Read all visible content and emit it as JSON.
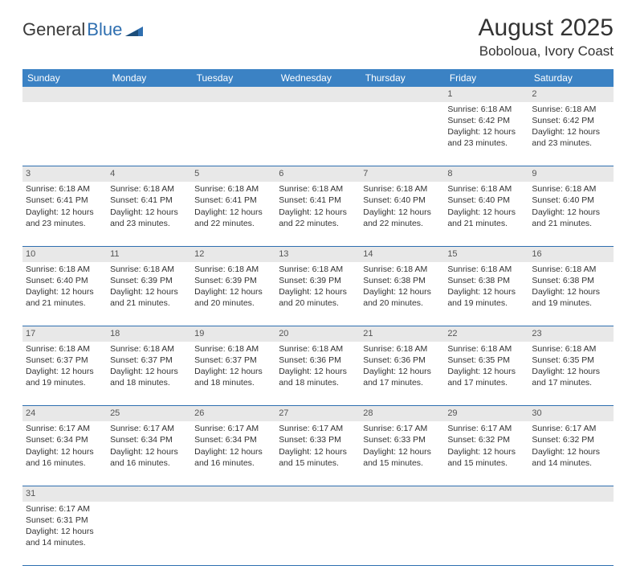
{
  "logo": {
    "text1": "General",
    "text2": "Blue"
  },
  "title": "August 2025",
  "location": "Boboloua, Ivory Coast",
  "colors": {
    "header_bg": "#3b82c4",
    "header_text": "#ffffff",
    "daynum_bg": "#e8e8e8",
    "cell_border": "#2f6fb0",
    "logo_blue": "#2f6fb0",
    "body_text": "#333333",
    "background": "#ffffff"
  },
  "typography": {
    "title_fontsize": 30,
    "location_fontsize": 17,
    "dayheader_fontsize": 12,
    "cell_fontsize": 10.5,
    "daynum_fontsize": 11
  },
  "day_headers": [
    "Sunday",
    "Monday",
    "Tuesday",
    "Wednesday",
    "Thursday",
    "Friday",
    "Saturday"
  ],
  "weeks": [
    {
      "nums": [
        "",
        "",
        "",
        "",
        "",
        "1",
        "2"
      ],
      "cells": [
        null,
        null,
        null,
        null,
        null,
        {
          "sunrise": "Sunrise: 6:18 AM",
          "sunset": "Sunset: 6:42 PM",
          "daylight": "Daylight: 12 hours and 23 minutes."
        },
        {
          "sunrise": "Sunrise: 6:18 AM",
          "sunset": "Sunset: 6:42 PM",
          "daylight": "Daylight: 12 hours and 23 minutes."
        }
      ]
    },
    {
      "nums": [
        "3",
        "4",
        "5",
        "6",
        "7",
        "8",
        "9"
      ],
      "cells": [
        {
          "sunrise": "Sunrise: 6:18 AM",
          "sunset": "Sunset: 6:41 PM",
          "daylight": "Daylight: 12 hours and 23 minutes."
        },
        {
          "sunrise": "Sunrise: 6:18 AM",
          "sunset": "Sunset: 6:41 PM",
          "daylight": "Daylight: 12 hours and 23 minutes."
        },
        {
          "sunrise": "Sunrise: 6:18 AM",
          "sunset": "Sunset: 6:41 PM",
          "daylight": "Daylight: 12 hours and 22 minutes."
        },
        {
          "sunrise": "Sunrise: 6:18 AM",
          "sunset": "Sunset: 6:41 PM",
          "daylight": "Daylight: 12 hours and 22 minutes."
        },
        {
          "sunrise": "Sunrise: 6:18 AM",
          "sunset": "Sunset: 6:40 PM",
          "daylight": "Daylight: 12 hours and 22 minutes."
        },
        {
          "sunrise": "Sunrise: 6:18 AM",
          "sunset": "Sunset: 6:40 PM",
          "daylight": "Daylight: 12 hours and 21 minutes."
        },
        {
          "sunrise": "Sunrise: 6:18 AM",
          "sunset": "Sunset: 6:40 PM",
          "daylight": "Daylight: 12 hours and 21 minutes."
        }
      ]
    },
    {
      "nums": [
        "10",
        "11",
        "12",
        "13",
        "14",
        "15",
        "16"
      ],
      "cells": [
        {
          "sunrise": "Sunrise: 6:18 AM",
          "sunset": "Sunset: 6:40 PM",
          "daylight": "Daylight: 12 hours and 21 minutes."
        },
        {
          "sunrise": "Sunrise: 6:18 AM",
          "sunset": "Sunset: 6:39 PM",
          "daylight": "Daylight: 12 hours and 21 minutes."
        },
        {
          "sunrise": "Sunrise: 6:18 AM",
          "sunset": "Sunset: 6:39 PM",
          "daylight": "Daylight: 12 hours and 20 minutes."
        },
        {
          "sunrise": "Sunrise: 6:18 AM",
          "sunset": "Sunset: 6:39 PM",
          "daylight": "Daylight: 12 hours and 20 minutes."
        },
        {
          "sunrise": "Sunrise: 6:18 AM",
          "sunset": "Sunset: 6:38 PM",
          "daylight": "Daylight: 12 hours and 20 minutes."
        },
        {
          "sunrise": "Sunrise: 6:18 AM",
          "sunset": "Sunset: 6:38 PM",
          "daylight": "Daylight: 12 hours and 19 minutes."
        },
        {
          "sunrise": "Sunrise: 6:18 AM",
          "sunset": "Sunset: 6:38 PM",
          "daylight": "Daylight: 12 hours and 19 minutes."
        }
      ]
    },
    {
      "nums": [
        "17",
        "18",
        "19",
        "20",
        "21",
        "22",
        "23"
      ],
      "cells": [
        {
          "sunrise": "Sunrise: 6:18 AM",
          "sunset": "Sunset: 6:37 PM",
          "daylight": "Daylight: 12 hours and 19 minutes."
        },
        {
          "sunrise": "Sunrise: 6:18 AM",
          "sunset": "Sunset: 6:37 PM",
          "daylight": "Daylight: 12 hours and 18 minutes."
        },
        {
          "sunrise": "Sunrise: 6:18 AM",
          "sunset": "Sunset: 6:37 PM",
          "daylight": "Daylight: 12 hours and 18 minutes."
        },
        {
          "sunrise": "Sunrise: 6:18 AM",
          "sunset": "Sunset: 6:36 PM",
          "daylight": "Daylight: 12 hours and 18 minutes."
        },
        {
          "sunrise": "Sunrise: 6:18 AM",
          "sunset": "Sunset: 6:36 PM",
          "daylight": "Daylight: 12 hours and 17 minutes."
        },
        {
          "sunrise": "Sunrise: 6:18 AM",
          "sunset": "Sunset: 6:35 PM",
          "daylight": "Daylight: 12 hours and 17 minutes."
        },
        {
          "sunrise": "Sunrise: 6:18 AM",
          "sunset": "Sunset: 6:35 PM",
          "daylight": "Daylight: 12 hours and 17 minutes."
        }
      ]
    },
    {
      "nums": [
        "24",
        "25",
        "26",
        "27",
        "28",
        "29",
        "30"
      ],
      "cells": [
        {
          "sunrise": "Sunrise: 6:17 AM",
          "sunset": "Sunset: 6:34 PM",
          "daylight": "Daylight: 12 hours and 16 minutes."
        },
        {
          "sunrise": "Sunrise: 6:17 AM",
          "sunset": "Sunset: 6:34 PM",
          "daylight": "Daylight: 12 hours and 16 minutes."
        },
        {
          "sunrise": "Sunrise: 6:17 AM",
          "sunset": "Sunset: 6:34 PM",
          "daylight": "Daylight: 12 hours and 16 minutes."
        },
        {
          "sunrise": "Sunrise: 6:17 AM",
          "sunset": "Sunset: 6:33 PM",
          "daylight": "Daylight: 12 hours and 15 minutes."
        },
        {
          "sunrise": "Sunrise: 6:17 AM",
          "sunset": "Sunset: 6:33 PM",
          "daylight": "Daylight: 12 hours and 15 minutes."
        },
        {
          "sunrise": "Sunrise: 6:17 AM",
          "sunset": "Sunset: 6:32 PM",
          "daylight": "Daylight: 12 hours and 15 minutes."
        },
        {
          "sunrise": "Sunrise: 6:17 AM",
          "sunset": "Sunset: 6:32 PM",
          "daylight": "Daylight: 12 hours and 14 minutes."
        }
      ]
    },
    {
      "nums": [
        "31",
        "",
        "",
        "",
        "",
        "",
        ""
      ],
      "cells": [
        {
          "sunrise": "Sunrise: 6:17 AM",
          "sunset": "Sunset: 6:31 PM",
          "daylight": "Daylight: 12 hours and 14 minutes."
        },
        null,
        null,
        null,
        null,
        null,
        null
      ]
    }
  ]
}
